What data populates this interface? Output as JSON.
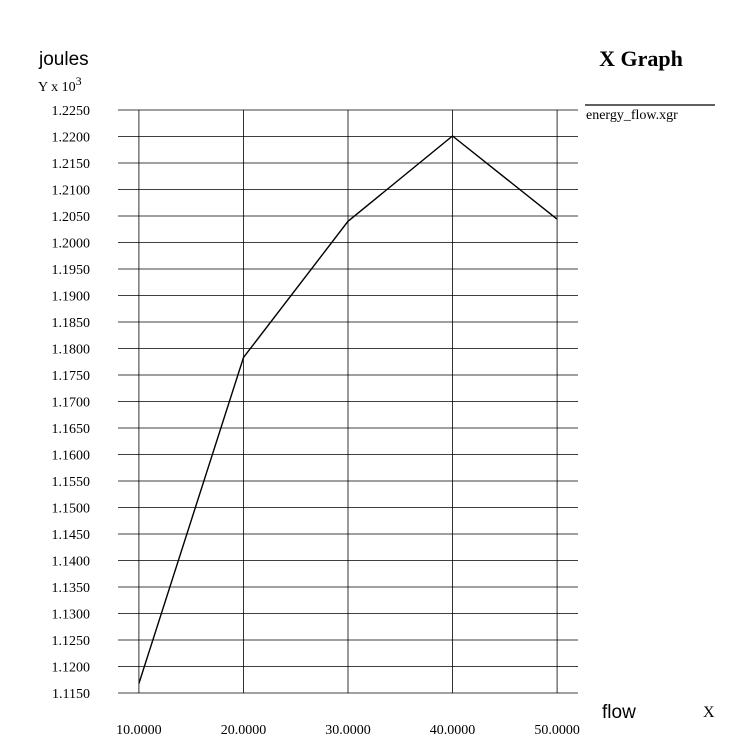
{
  "chart_data": {
    "type": "line",
    "title": "X Graph",
    "ylabel": "joules",
    "xlabel": "flow",
    "y_scale_label": "Y x 10",
    "y_scale_exponent": "3",
    "x_unit_label": "X",
    "grid": true,
    "legend": "right",
    "series": [
      {
        "name": "energy_flow.xgr",
        "x": [
          10,
          20,
          30,
          40,
          50
        ],
        "y": [
          1.1168,
          1.1783,
          1.204,
          1.2201,
          1.2044
        ],
        "color": "#000000"
      }
    ],
    "xlim": [
      8,
      52
    ],
    "ylim": [
      1.115,
      1.225
    ],
    "x_ticks": [
      "10.0000",
      "20.0000",
      "30.0000",
      "40.0000",
      "50.0000"
    ],
    "y_ticks": [
      "1.1150",
      "1.1200",
      "1.1250",
      "1.1300",
      "1.1350",
      "1.1400",
      "1.1450",
      "1.1500",
      "1.1550",
      "1.1600",
      "1.1650",
      "1.1700",
      "1.1750",
      "1.1800",
      "1.1850",
      "1.1900",
      "1.1950",
      "1.2000",
      "1.2050",
      "1.2100",
      "1.2150",
      "1.2200",
      "1.2250"
    ]
  }
}
